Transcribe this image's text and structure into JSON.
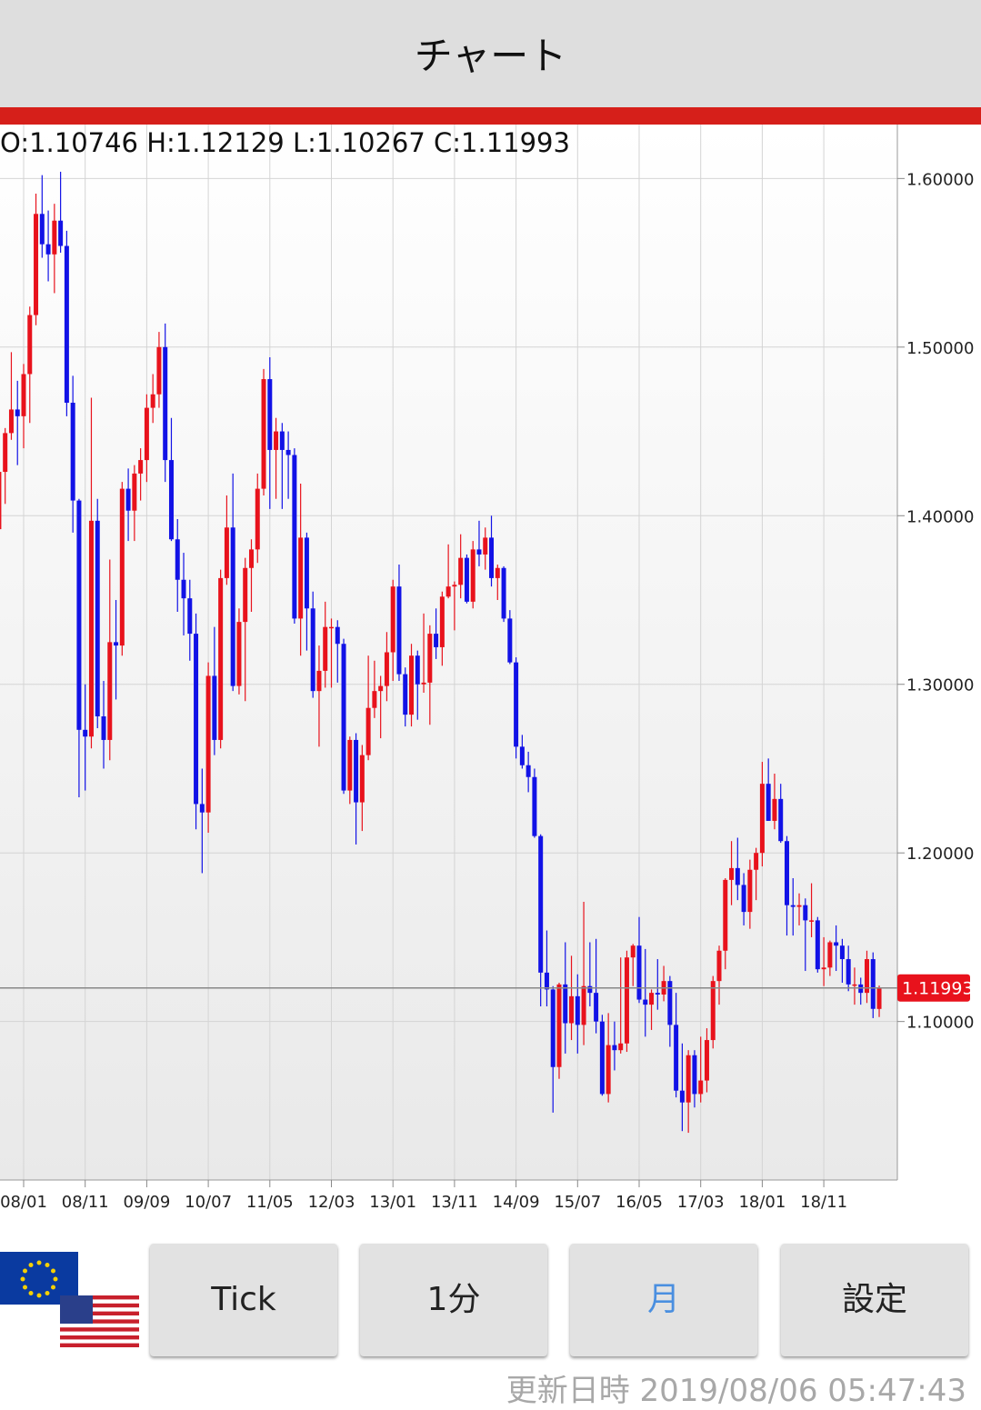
{
  "header": {
    "title": "チャート"
  },
  "chart_data": {
    "type": "candlestick",
    "ohlc_label": "O:1.10746 H:1.12129 L:1.10267 C:1.11993",
    "x": [
      "07/09",
      "07/10",
      "07/11",
      "07/12",
      "08/01",
      "08/02",
      "08/03",
      "08/04",
      "08/05",
      "08/06",
      "08/07",
      "08/08",
      "08/09",
      "08/10",
      "08/11",
      "08/12",
      "09/01",
      "09/02",
      "09/03",
      "09/04",
      "09/05",
      "09/06",
      "09/07",
      "09/08",
      "09/09",
      "09/10",
      "09/11",
      "09/12",
      "10/01",
      "10/02",
      "10/03",
      "10/04",
      "10/05",
      "10/06",
      "10/07",
      "10/08",
      "10/09",
      "10/10",
      "10/11",
      "10/12",
      "11/01",
      "11/02",
      "11/03",
      "11/04",
      "11/05",
      "11/06",
      "11/07",
      "11/08",
      "11/09",
      "11/10",
      "11/11",
      "11/12",
      "12/01",
      "12/02",
      "12/03",
      "12/04",
      "12/05",
      "12/06",
      "12/07",
      "12/08",
      "12/09",
      "12/10",
      "12/11",
      "12/12",
      "13/01",
      "13/02",
      "13/03",
      "13/04",
      "13/05",
      "13/06",
      "13/07",
      "13/08",
      "13/09",
      "13/10",
      "13/11",
      "13/12",
      "14/01",
      "14/02",
      "14/03",
      "14/04",
      "14/05",
      "14/06",
      "14/07",
      "14/08",
      "14/09",
      "14/10",
      "14/11",
      "14/12",
      "15/01",
      "15/02",
      "15/03",
      "15/04",
      "15/05",
      "15/06",
      "15/07",
      "15/08",
      "15/09",
      "15/10",
      "15/11",
      "15/12",
      "16/01",
      "16/02",
      "16/03",
      "16/04",
      "16/05",
      "16/06",
      "16/07",
      "16/08",
      "16/09",
      "16/10",
      "16/11",
      "16/12",
      "17/01",
      "17/02",
      "17/03",
      "17/04",
      "17/05",
      "17/06",
      "17/07",
      "17/08",
      "17/09",
      "17/10",
      "17/11",
      "17/12",
      "18/01",
      "18/02",
      "18/03",
      "18/04",
      "18/05",
      "18/06",
      "18/07",
      "18/08",
      "18/09",
      "18/10",
      "18/11",
      "18/12",
      "19/01",
      "19/02",
      "19/03",
      "19/04",
      "19/05",
      "19/06",
      "19/07",
      "19/08"
    ],
    "open": [
      1.392,
      1.426,
      1.449,
      1.463,
      1.459,
      1.484,
      1.519,
      1.579,
      1.561,
      1.555,
      1.575,
      1.56,
      1.467,
      1.409,
      1.273,
      1.269,
      1.397,
      1.281,
      1.267,
      1.325,
      1.323,
      1.416,
      1.403,
      1.425,
      1.433,
      1.464,
      1.472,
      1.5,
      1.433,
      1.386,
      1.362,
      1.351,
      1.33,
      1.229,
      1.224,
      1.305,
      1.267,
      1.363,
      1.393,
      1.299,
      1.337,
      1.369,
      1.38,
      1.416,
      1.481,
      1.439,
      1.45,
      1.439,
      1.436,
      1.339,
      1.387,
      1.345,
      1.296,
      1.308,
      1.334,
      1.334,
      1.324,
      1.237,
      1.267,
      1.23,
      1.258,
      1.286,
      1.296,
      1.299,
      1.319,
      1.358,
      1.306,
      1.282,
      1.317,
      1.3,
      1.301,
      1.33,
      1.322,
      1.352,
      1.358,
      1.359,
      1.375,
      1.349,
      1.38,
      1.377,
      1.387,
      1.363,
      1.369,
      1.339,
      1.313,
      1.263,
      1.252,
      1.245,
      1.21,
      1.129,
      1.119,
      1.073,
      1.122,
      1.099,
      1.115,
      1.098,
      1.121,
      1.117,
      1.1,
      1.057,
      1.086,
      1.083,
      1.087,
      1.138,
      1.145,
      1.113,
      1.11,
      1.117,
      1.116,
      1.124,
      1.098,
      1.059,
      1.052,
      1.08,
      1.057,
      1.065,
      1.089,
      1.124,
      1.142,
      1.184,
      1.191,
      1.181,
      1.165,
      1.19,
      1.2,
      1.241,
      1.219,
      1.232,
      1.207,
      1.169,
      1.168,
      1.169,
      1.16,
      1.16,
      1.131,
      1.132,
      1.147,
      1.145,
      1.137,
      1.122,
      1.122,
      1.117,
      1.137,
      1.10746
    ],
    "high": [
      1.428,
      1.452,
      1.497,
      1.48,
      1.49,
      1.524,
      1.591,
      1.602,
      1.581,
      1.585,
      1.604,
      1.569,
      1.483,
      1.41,
      1.3,
      1.47,
      1.41,
      1.302,
      1.374,
      1.35,
      1.42,
      1.428,
      1.43,
      1.44,
      1.472,
      1.484,
      1.509,
      1.514,
      1.458,
      1.398,
      1.378,
      1.362,
      1.342,
      1.25,
      1.313,
      1.334,
      1.368,
      1.412,
      1.425,
      1.345,
      1.375,
      1.386,
      1.425,
      1.487,
      1.494,
      1.458,
      1.455,
      1.45,
      1.44,
      1.419,
      1.39,
      1.355,
      1.323,
      1.349,
      1.339,
      1.338,
      1.327,
      1.269,
      1.271,
      1.264,
      1.317,
      1.314,
      1.305,
      1.331,
      1.362,
      1.371,
      1.31,
      1.324,
      1.32,
      1.342,
      1.335,
      1.345,
      1.355,
      1.383,
      1.361,
      1.389,
      1.377,
      1.385,
      1.397,
      1.393,
      1.4,
      1.371,
      1.37,
      1.344,
      1.316,
      1.27,
      1.26,
      1.25,
      1.211,
      1.154,
      1.121,
      1.123,
      1.147,
      1.139,
      1.128,
      1.171,
      1.147,
      1.149,
      1.104,
      1.105,
      1.1,
      1.138,
      1.142,
      1.146,
      1.162,
      1.143,
      1.119,
      1.137,
      1.133,
      1.127,
      1.117,
      1.087,
      1.083,
      1.083,
      1.091,
      1.096,
      1.127,
      1.145,
      1.185,
      1.207,
      1.209,
      1.188,
      1.196,
      1.203,
      1.254,
      1.256,
      1.247,
      1.241,
      1.21,
      1.185,
      1.176,
      1.173,
      1.182,
      1.162,
      1.15,
      1.148,
      1.157,
      1.149,
      1.145,
      1.132,
      1.126,
      1.142,
      1.141,
      1.12129
    ],
    "low": [
      1.389,
      1.407,
      1.445,
      1.43,
      1.44,
      1.455,
      1.513,
      1.553,
      1.539,
      1.532,
      1.556,
      1.459,
      1.39,
      1.233,
      1.237,
      1.262,
      1.274,
      1.25,
      1.255,
      1.291,
      1.317,
      1.385,
      1.385,
      1.409,
      1.42,
      1.455,
      1.464,
      1.42,
      1.385,
      1.343,
      1.329,
      1.314,
      1.214,
      1.188,
      1.212,
      1.258,
      1.262,
      1.359,
      1.296,
      1.294,
      1.29,
      1.343,
      1.372,
      1.412,
      1.404,
      1.41,
      1.404,
      1.41,
      1.336,
      1.317,
      1.32,
      1.292,
      1.263,
      1.298,
      1.298,
      1.301,
      1.235,
      1.229,
      1.205,
      1.213,
      1.255,
      1.28,
      1.268,
      1.29,
      1.302,
      1.302,
      1.275,
      1.275,
      1.279,
      1.295,
      1.276,
      1.315,
      1.311,
      1.351,
      1.332,
      1.351,
      1.348,
      1.345,
      1.37,
      1.368,
      1.358,
      1.35,
      1.337,
      1.312,
      1.256,
      1.25,
      1.236,
      1.209,
      1.109,
      1.109,
      1.046,
      1.066,
      1.081,
      1.089,
      1.081,
      1.086,
      1.109,
      1.093,
      1.056,
      1.052,
      1.071,
      1.081,
      1.082,
      1.121,
      1.111,
      1.091,
      1.095,
      1.107,
      1.112,
      1.085,
      1.055,
      1.035,
      1.034,
      1.049,
      1.052,
      1.058,
      1.084,
      1.11,
      1.131,
      1.169,
      1.172,
      1.157,
      1.155,
      1.172,
      1.192,
      1.219,
      1.214,
      1.206,
      1.151,
      1.151,
      1.157,
      1.13,
      1.15,
      1.129,
      1.121,
      1.127,
      1.13,
      1.123,
      1.118,
      1.11,
      1.11,
      1.111,
      1.102,
      1.10267
    ],
    "close": [
      1.426,
      1.449,
      1.463,
      1.459,
      1.484,
      1.519,
      1.579,
      1.561,
      1.555,
      1.575,
      1.56,
      1.467,
      1.409,
      1.273,
      1.269,
      1.397,
      1.281,
      1.267,
      1.325,
      1.323,
      1.416,
      1.403,
      1.425,
      1.433,
      1.464,
      1.472,
      1.5,
      1.433,
      1.386,
      1.362,
      1.351,
      1.33,
      1.229,
      1.224,
      1.305,
      1.267,
      1.363,
      1.393,
      1.299,
      1.337,
      1.369,
      1.38,
      1.416,
      1.481,
      1.439,
      1.45,
      1.439,
      1.436,
      1.339,
      1.387,
      1.345,
      1.296,
      1.308,
      1.334,
      1.334,
      1.324,
      1.237,
      1.267,
      1.23,
      1.258,
      1.286,
      1.296,
      1.299,
      1.319,
      1.358,
      1.306,
      1.282,
      1.317,
      1.3,
      1.301,
      1.33,
      1.322,
      1.352,
      1.358,
      1.359,
      1.375,
      1.349,
      1.38,
      1.377,
      1.387,
      1.363,
      1.369,
      1.339,
      1.313,
      1.263,
      1.252,
      1.245,
      1.21,
      1.129,
      1.119,
      1.073,
      1.122,
      1.099,
      1.115,
      1.098,
      1.121,
      1.117,
      1.1,
      1.057,
      1.086,
      1.083,
      1.087,
      1.138,
      1.145,
      1.113,
      1.11,
      1.117,
      1.116,
      1.124,
      1.098,
      1.059,
      1.052,
      1.08,
      1.057,
      1.065,
      1.089,
      1.124,
      1.142,
      1.184,
      1.191,
      1.181,
      1.165,
      1.19,
      1.2,
      1.241,
      1.219,
      1.232,
      1.207,
      1.169,
      1.168,
      1.169,
      1.16,
      1.16,
      1.131,
      1.132,
      1.147,
      1.145,
      1.137,
      1.122,
      1.122,
      1.117,
      1.137,
      1.1075,
      1.11993
    ],
    "up_color": "#e8121c",
    "down_color": "#1212e6",
    "ylim": [
      1.006,
      1.632
    ],
    "yticks": [
      {
        "value": 1.1,
        "label": "1.10000"
      },
      {
        "value": 1.2,
        "label": "1.20000"
      },
      {
        "value": 1.3,
        "label": "1.30000"
      },
      {
        "value": 1.4,
        "label": "1.40000"
      },
      {
        "value": 1.5,
        "label": "1.50000"
      },
      {
        "value": 1.6,
        "label": "1.60000"
      }
    ],
    "xticks": [
      "08/01",
      "08/11",
      "09/09",
      "10/07",
      "11/05",
      "12/03",
      "13/01",
      "13/11",
      "14/09",
      "15/07",
      "16/05",
      "17/03",
      "18/01",
      "18/11"
    ],
    "last_price": {
      "value": 1.11993,
      "label": "1.11993"
    },
    "grid": true
  },
  "buttons": [
    "Tick",
    "1分",
    "月",
    "設定"
  ],
  "footer": {
    "updated_label": "更新日時",
    "updated_at": "2019/08/06 05:47:43"
  }
}
